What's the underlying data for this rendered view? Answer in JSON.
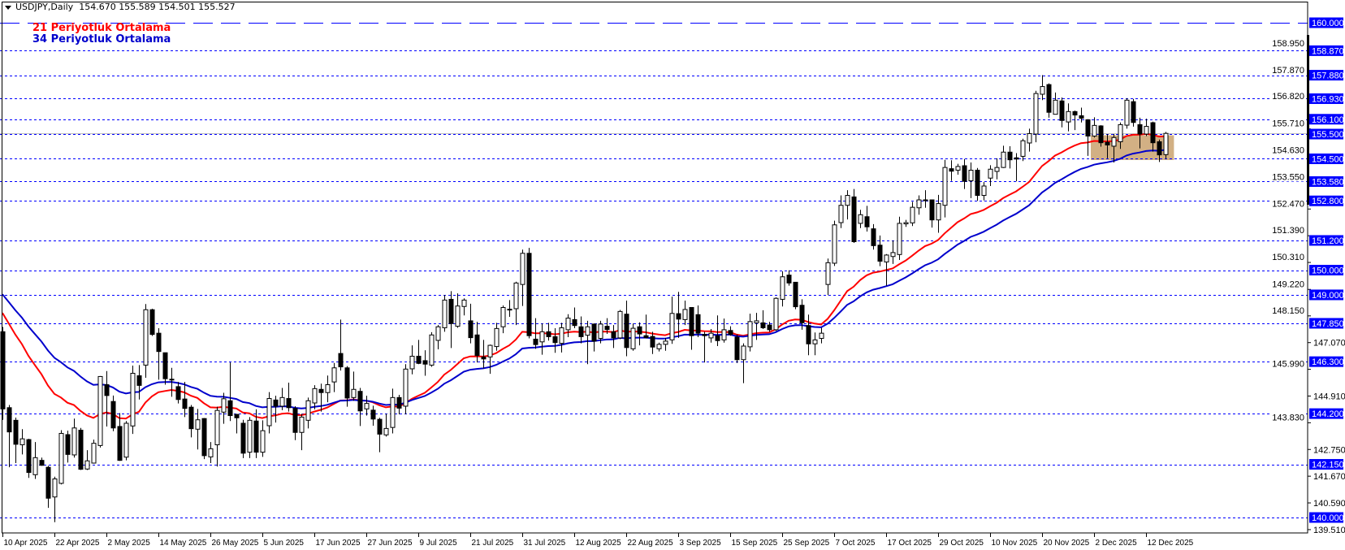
{
  "header": {
    "symbol": "USDJPY,Daily",
    "ohlc_text": "154.670 155.589 154.501 155.527"
  },
  "legend": [
    {
      "label": "21 Periyotluk Ortalama",
      "color": "#ff0000"
    },
    {
      "label": "34 Periyotluk Ortalama",
      "color": "#0000cc"
    }
  ],
  "chart_data": {
    "type": "candlestick",
    "symbol": "USDJPY",
    "timeframe": "Daily",
    "ylim": [
      139.2,
      160.9
    ],
    "x_tick_labels": [
      "10 Apr 2025",
      "22 Apr 2025",
      "2 May 2025",
      "14 May 2025",
      "26 May 2025",
      "5 Jun 2025",
      "17 Jun 2025",
      "27 Jun 2025",
      "9 Jul 2025",
      "21 Jul 2025",
      "31 Jul 2025",
      "12 Aug 2025",
      "22 Aug 2025",
      "3 Sep 2025",
      "15 Sep 2025",
      "25 Sep 2025",
      "7 Oct 2025",
      "17 Oct 2025",
      "29 Oct 2025",
      "10 Nov 2025",
      "20 Nov 2025",
      "2 Dec 2025",
      "12 Dec 2025"
    ],
    "x_tick_every_bars": 8,
    "y_tick_labels": [
      "158.950",
      "157.870",
      "156.820",
      "155.710",
      "154.630",
      "153.550",
      "152.470",
      "151.390",
      "150.310",
      "149.220",
      "148.150",
      "147.070",
      "145.990",
      "144.910",
      "143.830",
      "142.750",
      "141.670",
      "140.590",
      "139.510"
    ],
    "levels": [
      {
        "price": 160.0,
        "label": "160.000",
        "style": "long-dash"
      },
      {
        "price": 158.87,
        "label": "158.870",
        "style": "dash"
      },
      {
        "price": 157.88,
        "label": "157.880",
        "style": "dash"
      },
      {
        "price": 156.93,
        "label": "156.930",
        "style": "dash"
      },
      {
        "price": 156.1,
        "label": "156.100",
        "style": "dash"
      },
      {
        "price": 155.5,
        "label": "155.500",
        "style": "dash"
      },
      {
        "price": 154.5,
        "label": "154.500",
        "style": "dash"
      },
      {
        "price": 153.58,
        "label": "153.580",
        "style": "dash"
      },
      {
        "price": 152.8,
        "label": "152.800",
        "style": "dash"
      },
      {
        "price": 151.2,
        "label": "151.200",
        "style": "dash"
      },
      {
        "price": 150.0,
        "label": "150.000",
        "style": "dash"
      },
      {
        "price": 149.0,
        "label": "149.000",
        "style": "dash"
      },
      {
        "price": 147.85,
        "label": "147.850",
        "style": "dash"
      },
      {
        "price": 146.3,
        "label": "146.300",
        "style": "dash"
      },
      {
        "price": 144.2,
        "label": "144.200",
        "style": "dash"
      },
      {
        "price": 142.15,
        "label": "142.150",
        "style": "dash"
      },
      {
        "price": 140.0,
        "label": "140.000",
        "style": "dash"
      }
    ],
    "level_color": "#0000ff",
    "bid_price": 155.527,
    "zone": {
      "from_bar": 167.5,
      "to_bar": 180.3,
      "top": 155.45,
      "bottom": 154.45,
      "color": "#d2b084"
    },
    "moving_averages": [
      {
        "name": "21 Periyotluk Ortalama",
        "period": 21,
        "color": "#ff0000",
        "start": 148.27
      },
      {
        "name": "34 Periyotluk Ortalama",
        "period": 34,
        "color": "#0000cc",
        "start": 149.02
      }
    ],
    "ohlc": [
      [
        147.51,
        147.7,
        143.95,
        144.39
      ],
      [
        144.44,
        144.55,
        142.03,
        143.46
      ],
      [
        143.93,
        144.04,
        142.2,
        142.96
      ],
      [
        142.94,
        143.57,
        142.55,
        143.18
      ],
      [
        143.15,
        143.18,
        141.6,
        141.82
      ],
      [
        141.73,
        143.05,
        141.56,
        142.42
      ],
      [
        142.31,
        142.42,
        142.09,
        142.11
      ],
      [
        142.03,
        142.09,
        140.39,
        140.78
      ],
      [
        140.83,
        141.65,
        139.81,
        141.56
      ],
      [
        141.38,
        143.53,
        141.34,
        143.4
      ],
      [
        143.35,
        143.51,
        142.22,
        142.55
      ],
      [
        142.53,
        144.0,
        142.42,
        143.62
      ],
      [
        143.53,
        143.62,
        141.92,
        141.95
      ],
      [
        141.96,
        142.72,
        141.92,
        142.29
      ],
      [
        142.2,
        143.15,
        142.18,
        143.0
      ],
      [
        142.91,
        145.72,
        142.83,
        145.7
      ],
      [
        145.37,
        145.92,
        143.68,
        144.93
      ],
      [
        144.69,
        144.93,
        143.49,
        143.62
      ],
      [
        143.68,
        144.22,
        142.29,
        142.31
      ],
      [
        142.44,
        143.9,
        142.31,
        143.81
      ],
      [
        143.7,
        146.14,
        143.38,
        145.83
      ],
      [
        145.73,
        146.16,
        144.77,
        145.34
      ],
      [
        146.16,
        148.63,
        145.65,
        148.4
      ],
      [
        148.4,
        148.44,
        147.34,
        147.4
      ],
      [
        147.45,
        147.65,
        145.57,
        146.71
      ],
      [
        146.66,
        146.66,
        145.37,
        145.61
      ],
      [
        145.59,
        146.05,
        144.88,
        145.59
      ],
      [
        145.29,
        145.48,
        144.61,
        144.77
      ],
      [
        144.79,
        145.48,
        144.06,
        144.41
      ],
      [
        144.46,
        144.55,
        143.24,
        143.59
      ],
      [
        143.57,
        144.39,
        142.75,
        143.95
      ],
      [
        144.0,
        144.02,
        142.36,
        142.5
      ],
      [
        142.45,
        143.05,
        142.2,
        142.78
      ],
      [
        142.94,
        144.48,
        142.06,
        144.33
      ],
      [
        144.26,
        145.04,
        143.79,
        144.8
      ],
      [
        144.72,
        146.27,
        143.9,
        144.12
      ],
      [
        144.17,
        144.17,
        143.4,
        144.03
      ],
      [
        143.81,
        143.95,
        142.4,
        142.6
      ],
      [
        142.64,
        144.06,
        142.4,
        143.93
      ],
      [
        143.9,
        144.37,
        142.4,
        142.64
      ],
      [
        142.64,
        143.93,
        142.45,
        143.51
      ],
      [
        143.71,
        145.07,
        143.4,
        144.81
      ],
      [
        144.75,
        144.92,
        143.84,
        144.5
      ],
      [
        144.5,
        145.24,
        144.34,
        144.85
      ],
      [
        144.81,
        145.45,
        144.28,
        144.44
      ],
      [
        144.41,
        144.5,
        143.13,
        143.44
      ],
      [
        143.44,
        144.19,
        142.72,
        144.06
      ],
      [
        143.93,
        144.85,
        143.6,
        144.72
      ],
      [
        144.63,
        145.35,
        144.37,
        145.21
      ],
      [
        145.18,
        145.41,
        144.28,
        145.05
      ],
      [
        145.05,
        145.74,
        144.66,
        145.37
      ],
      [
        145.48,
        146.25,
        145.07,
        146.05
      ],
      [
        146.63,
        148.0,
        145.94,
        146.09
      ],
      [
        146.05,
        146.12,
        144.48,
        144.83
      ],
      [
        144.85,
        145.9,
        144.72,
        145.18
      ],
      [
        145.1,
        145.24,
        143.7,
        144.31
      ],
      [
        144.39,
        144.92,
        144.12,
        144.61
      ],
      [
        144.34,
        144.52,
        143.71,
        143.98
      ],
      [
        143.97,
        144.03,
        142.64,
        143.37
      ],
      [
        143.34,
        144.19,
        143.27,
        143.6
      ],
      [
        143.64,
        145.21,
        143.4,
        144.85
      ],
      [
        144.85,
        144.96,
        144.17,
        144.42
      ],
      [
        144.5,
        146.2,
        144.17,
        146.0
      ],
      [
        146.01,
        146.96,
        145.79,
        146.52
      ],
      [
        146.52,
        147.18,
        146.2,
        146.23
      ],
      [
        146.34,
        146.76,
        145.73,
        146.2
      ],
      [
        146.16,
        147.49,
        146.09,
        147.38
      ],
      [
        147.16,
        147.78,
        146.8,
        147.71
      ],
      [
        147.67,
        148.99,
        147.51,
        148.79
      ],
      [
        148.82,
        149.15,
        146.85,
        147.84
      ],
      [
        147.73,
        149.06,
        147.67,
        148.55
      ],
      [
        148.53,
        148.86,
        148.17,
        148.79
      ],
      [
        147.95,
        148.64,
        147.04,
        147.27
      ],
      [
        147.38,
        147.91,
        146.27,
        146.55
      ],
      [
        146.49,
        147.18,
        146.03,
        146.41
      ],
      [
        146.49,
        146.99,
        145.81,
        146.96
      ],
      [
        146.91,
        147.87,
        146.74,
        147.64
      ],
      [
        147.71,
        148.57,
        147.45,
        148.49
      ],
      [
        148.42,
        148.79,
        148.11,
        148.42
      ],
      [
        148.44,
        149.53,
        147.78,
        149.48
      ],
      [
        149.42,
        150.83,
        148.55,
        150.68
      ],
      [
        150.68,
        150.9,
        147.24,
        147.35
      ],
      [
        147.21,
        148.06,
        146.82,
        146.99
      ],
      [
        147.1,
        147.84,
        146.58,
        147.51
      ],
      [
        147.51,
        147.87,
        147.15,
        147.31
      ],
      [
        147.31,
        147.65,
        146.66,
        147.07
      ],
      [
        147.04,
        147.87,
        146.67,
        147.67
      ],
      [
        147.59,
        148.22,
        147.29,
        148.06
      ],
      [
        148.0,
        148.49,
        147.65,
        147.76
      ],
      [
        147.71,
        148.13,
        147.04,
        147.31
      ],
      [
        147.37,
        147.95,
        146.2,
        147.71
      ],
      [
        147.82,
        147.84,
        146.71,
        147.13
      ],
      [
        147.24,
        147.95,
        147.04,
        147.82
      ],
      [
        147.73,
        148.06,
        147.42,
        147.6
      ],
      [
        147.51,
        147.78,
        146.85,
        147.26
      ],
      [
        147.26,
        148.39,
        147.21,
        148.33
      ],
      [
        148.22,
        148.77,
        146.52,
        146.87
      ],
      [
        146.82,
        147.84,
        146.74,
        147.65
      ],
      [
        147.71,
        147.89,
        146.96,
        147.42
      ],
      [
        147.35,
        148.2,
        147.24,
        147.27
      ],
      [
        147.32,
        147.51,
        146.61,
        146.89
      ],
      [
        146.82,
        147.07,
        146.71,
        147.0
      ],
      [
        147.0,
        147.26,
        146.74,
        147.13
      ],
      [
        147.18,
        148.93,
        147.02,
        148.25
      ],
      [
        148.24,
        149.12,
        147.26,
        148.02
      ],
      [
        148.0,
        148.77,
        147.78,
        148.41
      ],
      [
        148.49,
        148.49,
        146.78,
        147.35
      ],
      [
        148.2,
        148.57,
        147.29,
        147.45
      ],
      [
        147.4,
        147.51,
        146.27,
        147.35
      ],
      [
        147.26,
        147.62,
        147.07,
        147.45
      ],
      [
        147.35,
        148.17,
        146.93,
        147.15
      ],
      [
        147.18,
        148.04,
        147.07,
        147.59
      ],
      [
        147.56,
        147.73,
        147.35,
        147.4
      ],
      [
        147.29,
        147.4,
        146.25,
        146.38
      ],
      [
        146.38,
        147.04,
        145.43,
        146.93
      ],
      [
        146.9,
        148.24,
        146.71,
        147.92
      ],
      [
        147.87,
        148.27,
        147.18,
        147.95
      ],
      [
        147.87,
        148.38,
        147.62,
        147.67
      ],
      [
        147.78,
        147.91,
        147.51,
        147.59
      ],
      [
        147.59,
        148.9,
        147.54,
        148.86
      ],
      [
        148.82,
        149.95,
        148.53,
        149.73
      ],
      [
        149.8,
        149.99,
        149.37,
        149.48
      ],
      [
        149.51,
        149.51,
        148.42,
        148.52
      ],
      [
        148.58,
        148.82,
        147.59,
        147.87
      ],
      [
        147.76,
        148.2,
        146.56,
        147.02
      ],
      [
        147.02,
        147.48,
        146.56,
        147.18
      ],
      [
        147.24,
        147.67,
        147.04,
        147.45
      ],
      [
        149.42,
        150.47,
        148.99,
        150.3
      ],
      [
        150.28,
        152.0,
        150.17,
        151.83
      ],
      [
        151.92,
        153.02,
        151.7,
        152.62
      ],
      [
        152.62,
        153.23,
        152.05,
        153.02
      ],
      [
        152.96,
        153.28,
        151.1,
        151.15
      ],
      [
        151.89,
        152.44,
        151.7,
        152.24
      ],
      [
        152.16,
        152.6,
        151.56,
        151.75
      ],
      [
        151.67,
        151.86,
        150.83,
        150.99
      ],
      [
        151.01,
        151.4,
        150.16,
        150.36
      ],
      [
        150.33,
        150.65,
        149.37,
        150.61
      ],
      [
        150.55,
        151.2,
        150.25,
        150.71
      ],
      [
        150.63,
        152.16,
        150.41,
        151.89
      ],
      [
        151.87,
        152.03,
        151.75,
        151.92
      ],
      [
        151.91,
        152.76,
        151.78,
        152.54
      ],
      [
        152.52,
        153.02,
        152.24,
        152.84
      ],
      [
        152.84,
        153.23,
        152.52,
        152.84
      ],
      [
        152.84,
        152.84,
        151.72,
        152.03
      ],
      [
        152.03,
        153.04,
        151.51,
        152.69
      ],
      [
        152.62,
        154.46,
        152.13,
        154.15
      ],
      [
        154.1,
        154.44,
        153.61,
        154.0
      ],
      [
        154.04,
        154.3,
        153.86,
        154.19
      ],
      [
        154.22,
        154.49,
        153.28,
        153.59
      ],
      [
        153.61,
        154.35,
        152.91,
        154.04
      ],
      [
        154.04,
        154.13,
        152.8,
        153.02
      ],
      [
        153.02,
        153.56,
        152.82,
        153.4
      ],
      [
        153.72,
        154.24,
        153.4,
        154.08
      ],
      [
        153.99,
        154.52,
        153.67,
        154.15
      ],
      [
        154.15,
        155.03,
        154.13,
        154.77
      ],
      [
        154.77,
        155.01,
        154.11,
        154.46
      ],
      [
        154.54,
        154.73,
        153.59,
        154.49
      ],
      [
        154.6,
        155.31,
        154.41,
        155.23
      ],
      [
        155.14,
        155.72,
        154.79,
        155.52
      ],
      [
        155.5,
        157.25,
        155.17,
        157.14
      ],
      [
        157.11,
        157.88,
        156.87,
        157.42
      ],
      [
        157.5,
        157.55,
        156.16,
        156.38
      ],
      [
        156.3,
        157.18,
        156.3,
        156.87
      ],
      [
        156.84,
        156.98,
        155.77,
        156.05
      ],
      [
        155.99,
        156.74,
        155.61,
        156.41
      ],
      [
        156.41,
        156.45,
        155.66,
        156.27
      ],
      [
        156.24,
        156.57,
        155.97,
        156.14
      ],
      [
        156.08,
        156.1,
        154.62,
        155.42
      ],
      [
        155.42,
        156.18,
        155.36,
        155.85
      ],
      [
        155.83,
        155.86,
        154.99,
        155.15
      ],
      [
        155.17,
        155.5,
        154.52,
        155.06
      ],
      [
        155.01,
        155.5,
        154.35,
        155.36
      ],
      [
        155.19,
        155.97,
        154.9,
        155.88
      ],
      [
        155.86,
        156.95,
        155.72,
        156.87
      ],
      [
        156.81,
        156.92,
        155.8,
        155.97
      ],
      [
        155.88,
        156.16,
        154.92,
        155.5
      ],
      [
        155.5,
        156.12,
        155.42,
        155.81
      ],
      [
        155.96,
        156.0,
        154.79,
        155.15
      ],
      [
        155.19,
        155.28,
        154.37,
        154.66
      ],
      [
        154.67,
        155.589,
        154.501,
        155.527
      ]
    ]
  }
}
